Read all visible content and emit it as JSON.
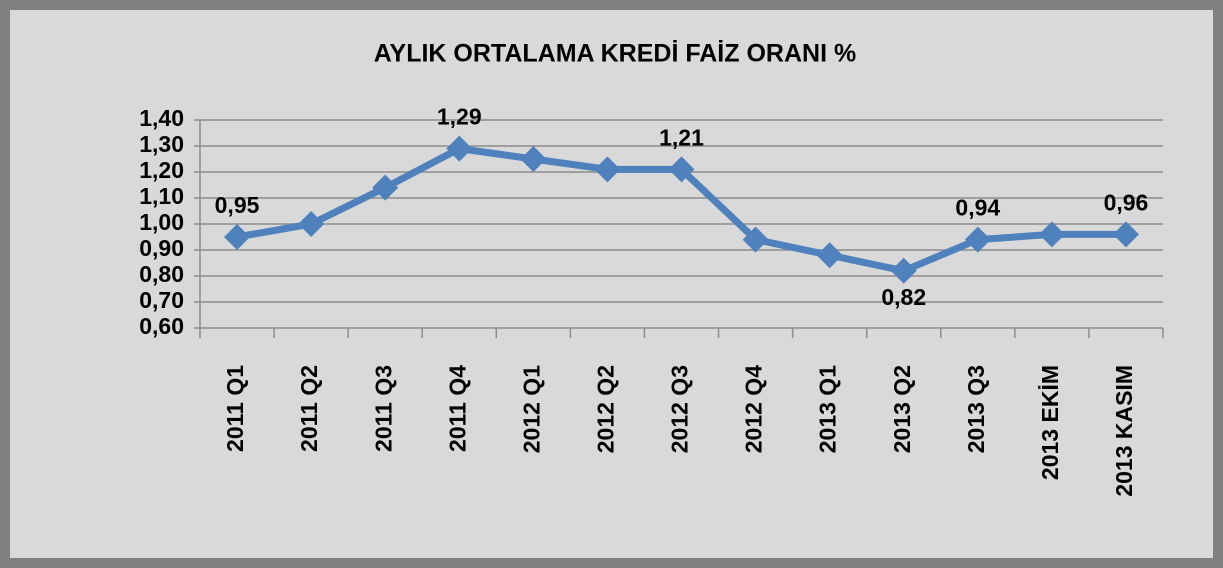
{
  "chart_data": {
    "type": "line",
    "title": "AYLIK ORTALAMA KREDİ FAİZ ORANI %",
    "categories": [
      "2011 Q1",
      "2011 Q2",
      "2011 Q3",
      "2011 Q4",
      "2012 Q1",
      "2012 Q2",
      "2012 Q3",
      "2012 Q4",
      "2013 Q1",
      "2013 Q2",
      "2013 Q3",
      "2013 EKİM",
      "2013 KASIM"
    ],
    "values": [
      0.95,
      1.0,
      1.14,
      1.29,
      1.25,
      1.21,
      1.21,
      0.94,
      0.88,
      0.82,
      0.94,
      0.96,
      0.96
    ],
    "value_labels": [
      "0,95",
      null,
      null,
      "1,29",
      null,
      null,
      "1,21",
      null,
      null,
      "0,82",
      "0,94",
      null,
      "0,96"
    ],
    "color": "#4f81bd",
    "ylim": [
      0.6,
      1.4
    ],
    "yticks": [
      {
        "value": 0.6,
        "label": "0,60"
      },
      {
        "value": 0.7,
        "label": "0,70"
      },
      {
        "value": 0.8,
        "label": "0,80"
      },
      {
        "value": 0.9,
        "label": "0,90"
      },
      {
        "value": 1.0,
        "label": "1,00"
      },
      {
        "value": 1.1,
        "label": "1,10"
      },
      {
        "value": 1.2,
        "label": "1,20"
      },
      {
        "value": 1.3,
        "label": "1,30"
      },
      {
        "value": 1.4,
        "label": "1,40"
      }
    ],
    "grid": true
  }
}
